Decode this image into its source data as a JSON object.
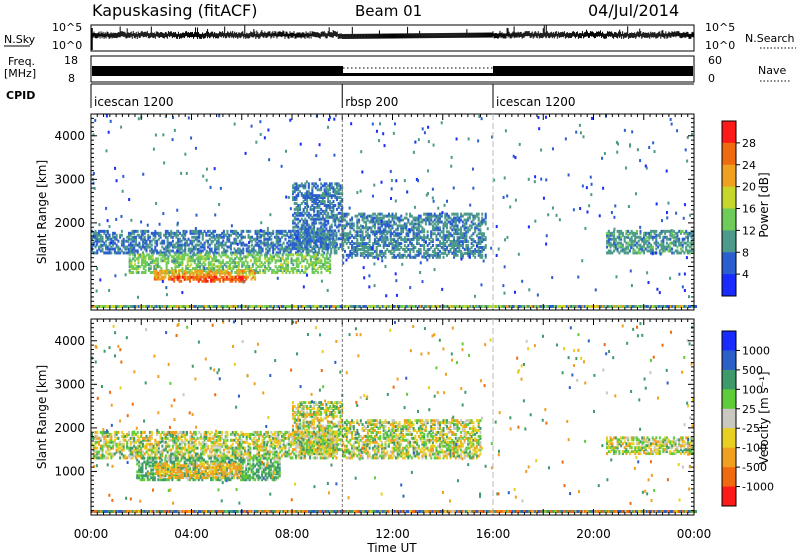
{
  "header": {
    "station": "Kapuskasing (fitACF)",
    "beam": "Beam 01",
    "date": "04/Jul/2014"
  },
  "noise_panel": {
    "left_label": "N.Sky",
    "left_ticks": [
      "10^5",
      "10^0"
    ],
    "right_label": "N.Search",
    "right_ticks": [
      "10^5",
      "10^0"
    ]
  },
  "freq_panel": {
    "left_label_1": "Freq.",
    "left_label_2": "[MHz]",
    "left_ticks": [
      "18",
      "8"
    ],
    "right_label": "Nave",
    "right_ticks": [
      "60",
      "0"
    ]
  },
  "cpid_panel": {
    "label": "CPID",
    "segments": [
      {
        "name": "icescan 1200",
        "start_h": 0,
        "end_h": 10
      },
      {
        "name": "rbsp 200",
        "start_h": 10,
        "end_h": 16
      },
      {
        "name": "icescan 1200",
        "start_h": 16,
        "end_h": 24
      }
    ]
  },
  "power_panel": {
    "ylabel": "Slant Range [km]",
    "yticks": [
      "1000",
      "2000",
      "3000",
      "4000"
    ],
    "colorbar_label": "Power [dB]",
    "colorbar_ticks": [
      "4",
      "8",
      "12",
      "16",
      "20",
      "24",
      "28"
    ],
    "colors": [
      "#1a2bff",
      "#2b5fcf",
      "#4d9a8a",
      "#6fcb5a",
      "#c7d62a",
      "#f0a020",
      "#f06a10",
      "#ff1a1a"
    ]
  },
  "velocity_panel": {
    "ylabel": "Slant Range [km]",
    "yticks": [
      "1000",
      "2000",
      "3000",
      "4000"
    ],
    "colorbar_label": "Velocity [m s⁻¹]",
    "colorbar_ticks": [
      "1000",
      "500",
      "100",
      "25",
      "-25",
      "-100",
      "-500",
      "-1000"
    ],
    "colors": [
      "#1a2bff",
      "#2b60c8",
      "#3f9a6a",
      "#5fcc3a",
      "#c8c8c0",
      "#e8d020",
      "#f0a020",
      "#f06a10",
      "#ff1a1a"
    ]
  },
  "xaxis": {
    "label": "Time UT",
    "ticks": [
      "00:00",
      "04:00",
      "08:00",
      "12:00",
      "16:00",
      "20:00",
      "00:00"
    ]
  },
  "chart_data": {
    "type": "heatmap",
    "title": "Kapuskasing (fitACF)",
    "subtitle": "Beam 01",
    "xlabel": "Time UT",
    "ylabel": "Slant Range [km]",
    "xlim": [
      0,
      24
    ],
    "ylim": [
      0,
      4500
    ],
    "series": [
      {
        "name": "Power [dB]",
        "regions": [
          {
            "t0": 0.0,
            "t1": 9.8,
            "r0": 1300,
            "r1": 1800,
            "level": 8
          },
          {
            "t0": 1.5,
            "t1": 9.5,
            "r0": 850,
            "r1": 1300,
            "level": 14
          },
          {
            "t0": 2.5,
            "t1": 6.5,
            "r0": 700,
            "r1": 900,
            "level": 22
          },
          {
            "t0": 3.2,
            "t1": 6.2,
            "r0": 650,
            "r1": 760,
            "level": 27
          },
          {
            "t0": 8.0,
            "t1": 10.0,
            "r0": 1400,
            "r1": 2900,
            "level": 8
          },
          {
            "t0": 10.0,
            "t1": 15.7,
            "r0": 1200,
            "r1": 2200,
            "level": 9
          },
          {
            "t0": 20.5,
            "t1": 24.0,
            "r0": 1300,
            "r1": 1800,
            "level": 10
          }
        ]
      },
      {
        "name": "Velocity [m s-1]",
        "regions": [
          {
            "t0": 0.0,
            "t1": 9.8,
            "r0": 1300,
            "r1": 1900,
            "level": 0
          },
          {
            "t0": 1.8,
            "t1": 7.5,
            "r0": 800,
            "r1": 1300,
            "level": 150
          },
          {
            "t0": 2.5,
            "t1": 6.0,
            "r0": 850,
            "r1": 1200,
            "level": -150
          },
          {
            "t0": 8.0,
            "t1": 10.0,
            "r0": 1400,
            "r1": 2600,
            "level": 0
          },
          {
            "t0": 10.0,
            "t1": 15.5,
            "r0": 1300,
            "r1": 2200,
            "level": 0
          },
          {
            "t0": 20.5,
            "t1": 24.0,
            "r0": 1400,
            "r1": 1800,
            "level": 0
          }
        ]
      }
    ]
  }
}
